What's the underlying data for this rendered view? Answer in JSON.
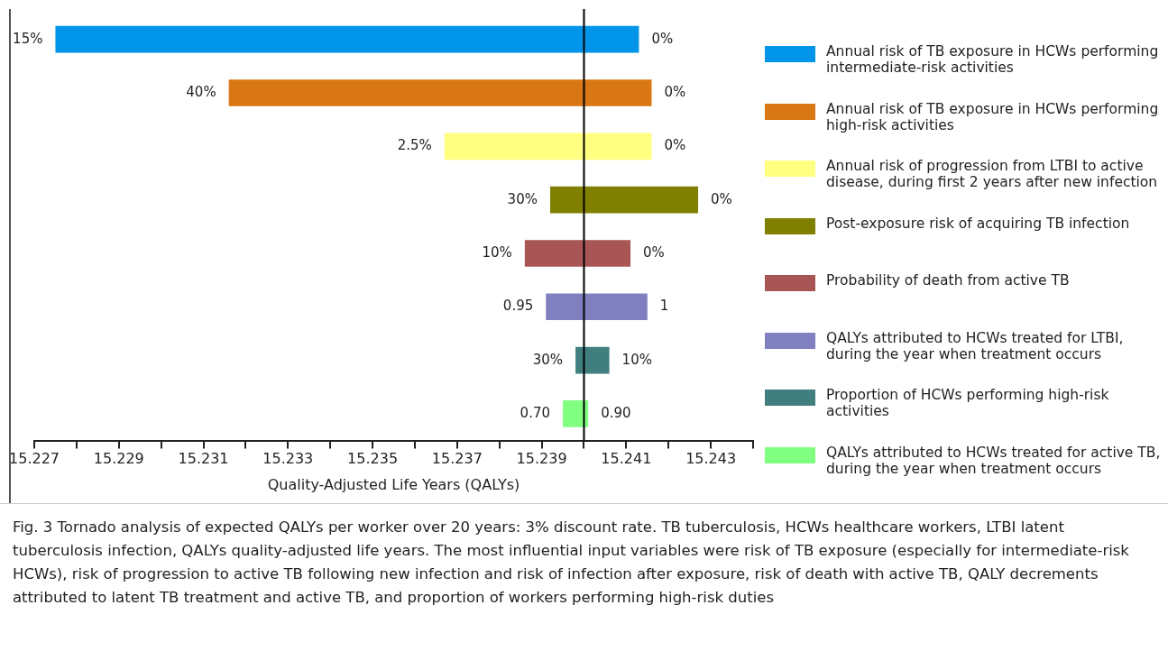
{
  "chart_data": {
    "type": "bar",
    "orientation": "horizontal",
    "xlabel": "Quality-Adjusted Life Years (QALYs)",
    "categories": [
      null,
      null,
      null,
      null,
      null,
      null,
      null,
      null
    ],
    "series": [
      {
        "name": "Annual risk of TB exposure in HCWs performing intermediate-risk activities",
        "color": "#0095e8",
        "base": [
          15.2275,
          null,
          null,
          null,
          null,
          null,
          null,
          null
        ],
        "values": [
          0.0138,
          null,
          null,
          null,
          null,
          null,
          null,
          null
        ]
      },
      {
        "name": "Annual risk of TB exposure in HCWs performing high-risk activities",
        "color": "#d87713",
        "base": [
          null,
          15.2316,
          null,
          null,
          null,
          null,
          null,
          null
        ],
        "values": [
          null,
          0.01,
          null,
          null,
          null,
          null,
          null,
          null
        ]
      },
      {
        "name": "Annual risk of progression from LTBI to active disease, during first 2 years after new infection",
        "color": "#ffff80",
        "base": [
          null,
          null,
          15.2367,
          null,
          null,
          null,
          null,
          null
        ],
        "values": [
          null,
          null,
          0.0049,
          null,
          null,
          null,
          null,
          null
        ]
      },
      {
        "name": "Post-exposure risk of acquiring TB infection",
        "color": "#808000",
        "base": [
          null,
          null,
          null,
          15.2392,
          null,
          null,
          null,
          null
        ],
        "values": [
          null,
          null,
          null,
          0.0035,
          null,
          null,
          null,
          null
        ]
      },
      {
        "name": "Probability of death from active TB",
        "color": "#a85555",
        "base": [
          null,
          null,
          null,
          null,
          15.2386,
          null,
          null,
          null
        ],
        "values": [
          null,
          null,
          null,
          null,
          0.0025,
          null,
          null,
          null
        ]
      },
      {
        "name": "QALYs attributed to HCWs treated for LTBI, during the year when treatment occurs",
        "color": "#8080c0",
        "base": [
          null,
          null,
          null,
          null,
          null,
          15.2391,
          null,
          null
        ],
        "values": [
          null,
          null,
          null,
          null,
          null,
          0.0024,
          null,
          null
        ]
      },
      {
        "name": "Proportion of HCWs performing high-risk activities",
        "color": "#417f7f",
        "base": [
          null,
          null,
          null,
          null,
          null,
          null,
          15.2398,
          null
        ],
        "values": [
          null,
          null,
          null,
          null,
          null,
          null,
          0.0008,
          null
        ]
      },
      {
        "name": "QALYs attributed to HCWs treated for active TB, during the year when treatment occurs",
        "color": "#80ff80",
        "base": [
          null,
          null,
          null,
          null,
          null,
          null,
          null,
          15.2395
        ],
        "values": [
          null,
          null,
          null,
          null,
          null,
          null,
          null,
          0.0006
        ]
      }
    ],
    "xlim": [
      15.227,
      15.244
    ],
    "xticks": [
      15.227,
      {
        "value": 15.228,
        "label": null
      },
      15.229,
      {
        "value": 15.23,
        "label": null
      },
      15.231,
      {
        "value": 15.232,
        "label": null
      },
      15.233,
      {
        "value": 15.234,
        "label": null
      },
      15.235,
      {
        "value": 15.236,
        "label": null
      },
      15.237,
      {
        "value": 15.238,
        "label": null
      },
      15.239,
      {
        "value": 15.24,
        "label": null
      },
      15.241,
      {
        "value": 15.242,
        "label": null
      },
      15.243,
      {
        "value": 15.244,
        "label": null
      }
    ],
    "ref_lines": [
      {
        "axis": "x",
        "value": 15.24,
        "color": "#000000"
      }
    ],
    "tick_labels": "x",
    "legend": "right",
    "annotations": [
      {
        "text": "15%",
        "x": 15.2275
      },
      {
        "text": "0%",
        "x": 15.2413
      },
      {
        "text": "40%",
        "x": 15.2316
      },
      {
        "text": "0%",
        "x": 15.2416
      },
      {
        "text": "2.5%",
        "x": 15.2367
      },
      {
        "text": "0%",
        "x": 15.2416
      },
      {
        "text": "30%",
        "x": 15.2392
      },
      {
        "text": "0%",
        "x": 15.2427
      },
      {
        "text": "10%",
        "x": 15.2386
      },
      {
        "text": "0%",
        "x": 15.2411
      },
      {
        "text": "0.95",
        "x": 15.2391
      },
      {
        "text": "1",
        "x": 15.2415
      },
      {
        "text": "30%",
        "x": 15.2398
      },
      {
        "text": "10%",
        "x": 15.2406
      },
      {
        "text": "0.70",
        "x": 15.2395
      },
      {
        "text": "0.90",
        "x": 15.2401
      },
      "Fig. 3 Tornado analysis of expected QALYs per worker over 20 years: 3% discount rate. TB tuberculosis, HCWs healthcare workers, LTBI latent tuberculosis infection, QALYs quality-adjusted life years. The most influential input variables were risk of TB exposure (especially for intermediate-risk HCWs), risk of progression to active TB following new infection and risk of infection after exposure, risk of death with active TB, QALY decrements attributed to latent TB treatment and active TB, and proportion of workers performing high-risk duties"
    ]
  }
}
